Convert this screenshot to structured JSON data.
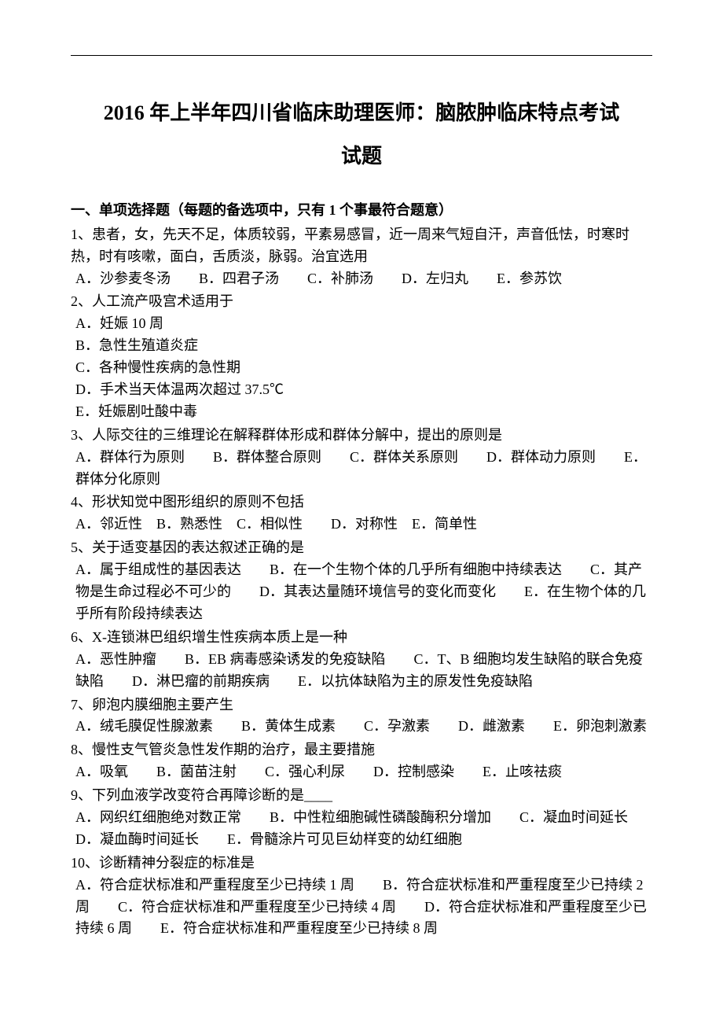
{
  "title": "2016 年上半年四川省临床助理医师：脑脓肿临床特点考试",
  "subtitle": "试题",
  "sectionHeader": "一、单项选择题（每题的备选项中，只有 1 个事最符合题意）",
  "questions": [
    {
      "num": "1",
      "text": "患者，女，先天不足，体质较弱，平素易感冒，近一周来气短自汗，声音低怯，时寒时热，时有咳嗽，面白，舌质淡，脉弱。治宜选用",
      "options": "A．沙参麦冬汤　　B．四君子汤　　C．补肺汤　　D．左归丸　　E．参苏饮"
    },
    {
      "num": "2",
      "text": "人工流产吸宫术适用于",
      "optionsMultiline": [
        "A．妊娠 10 周",
        "B．急性生殖道炎症",
        "C．各种慢性疾病的急性期",
        "D．手术当天体温两次超过 37.5℃",
        "E．妊娠剧吐酸中毒"
      ]
    },
    {
      "num": "3",
      "text": "人际交往的三维理论在解释群体形成和群体分解中，提出的原则是",
      "options": "A．群体行为原则　　B．群体整合原则　　C．群体关系原则　　D．群体动力原则　　E．群体分化原则"
    },
    {
      "num": "4",
      "text": "形状知觉中图形组织的原则不包括",
      "options": "A．邻近性　B．熟悉性　C．相似性　　D．对称性　E．简单性"
    },
    {
      "num": "5",
      "text": "关于适变基因的表达叙述正确的是",
      "options": "A．属于组成性的基因表达　　B．在一个生物个体的几乎所有细胞中持续表达　　C．其产物是生命过程必不可少的　　D．其表达量随环境信号的变化而变化　　E．在生物个体的几乎所有阶段持续表达"
    },
    {
      "num": "6",
      "text": "X-连锁淋巴组织增生性疾病本质上是一种",
      "options": "A．恶性肿瘤　　B．EB 病毒感染诱发的免疫缺陷　　C．T、B 细胞均发生缺陷的联合免疫缺陷　　D．淋巴瘤的前期疾病　　E．以抗体缺陷为主的原发性免疫缺陷"
    },
    {
      "num": "7",
      "text": "卵泡内膜细胞主要产生",
      "options": "A．绒毛膜促性腺激素　　B．黄体生成素　　C．孕激素　　D．雌激素　　E．卵泡刺激素"
    },
    {
      "num": "8",
      "text": "慢性支气管炎急性发作期的治疗，最主要措施",
      "options": "A．吸氧　　B．菌苗注射　　C．强心利尿　　D．控制感染　　E．止咳祛痰"
    },
    {
      "num": "9",
      "text": "下列血液学改变符合再障诊断的是____",
      "options": "A．网织红细胞绝对数正常　　B．中性粒细胞碱性磷酸酶积分增加　　C．凝血时间延长　　D．凝血酶时间延长　　E．骨髓涂片可见巨幼样变的幼红细胞"
    },
    {
      "num": "10",
      "text": "诊断精神分裂症的标准是",
      "options": "A．符合症状标准和严重程度至少已持续 1 周　　B．符合症状标准和严重程度至少已持续 2 周　　C．符合症状标准和严重程度至少已持续 4 周　　D．符合症状标准和严重程度至少已持续 6 周　　E．符合症状标准和严重程度至少已持续 8 周"
    }
  ]
}
